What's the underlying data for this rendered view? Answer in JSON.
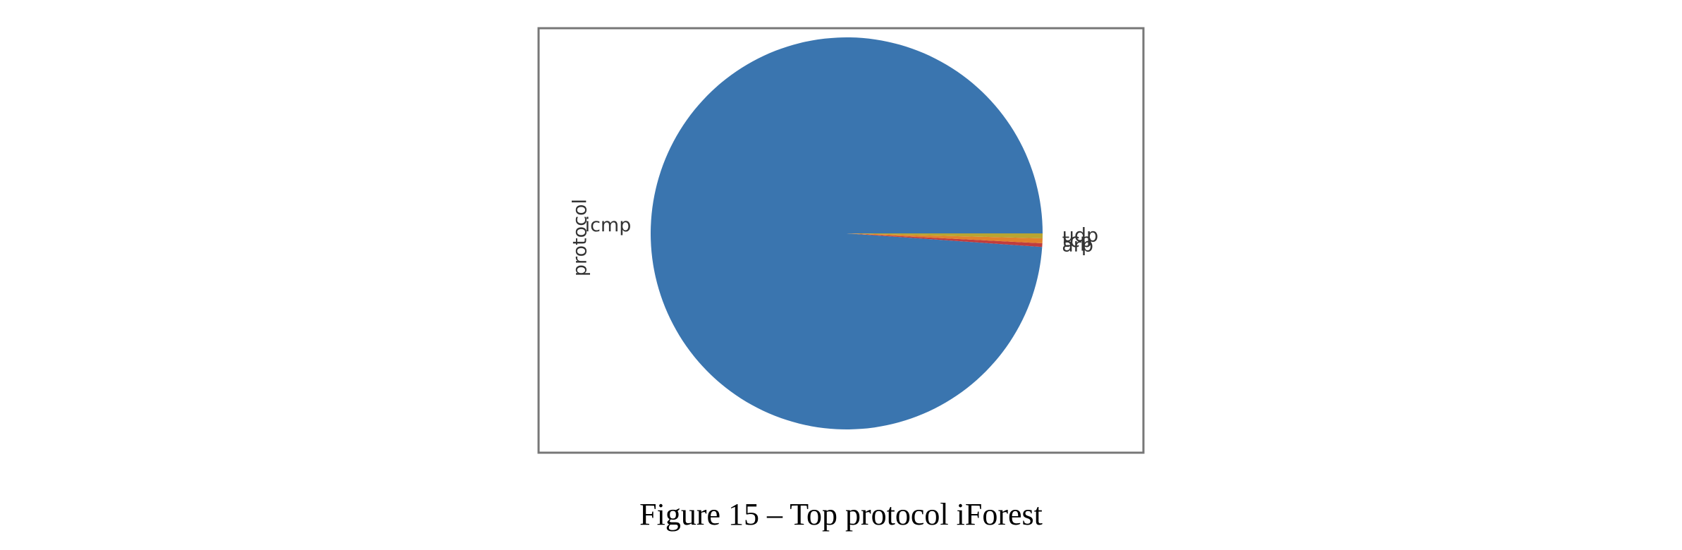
{
  "chart_data": {
    "type": "pie",
    "caption": "Figure 15 – Top protocol iForest",
    "ylabel": "protocol",
    "categories": [
      "icmp",
      "arp",
      "tcp",
      "udp"
    ],
    "values": [
      98.9,
      0.3,
      0.4,
      0.4
    ],
    "colors": [
      "#3a75af",
      "#c03d3e",
      "#e1812c",
      "#b8a532"
    ],
    "startangle": 0,
    "counterclock": true
  }
}
